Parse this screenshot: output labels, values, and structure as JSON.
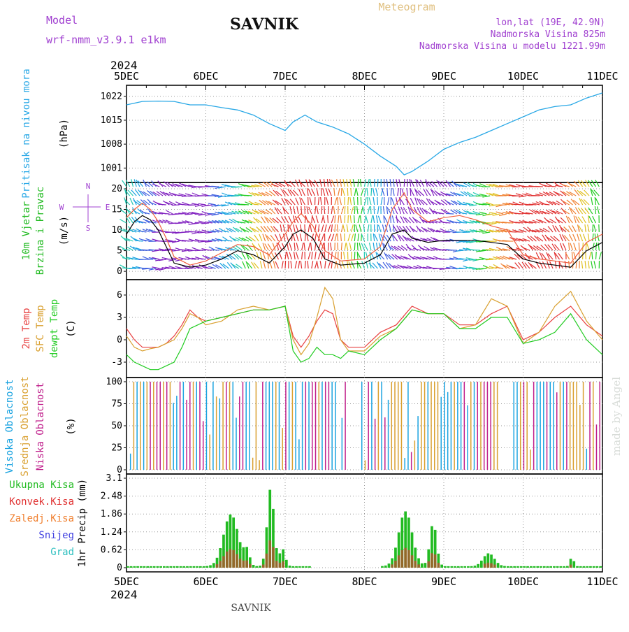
{
  "header": {
    "model_label": "Model",
    "model_name": "wrf-nmm_v3.9.1 e1km",
    "title": "SAVNIK",
    "subtitle": "Meteogram",
    "location": "lon,lat (19E, 42.9N)",
    "elevation": "Nadmorska Visina 825m",
    "model_elevation": "Nadmorska Visina u modelu 1221.99m",
    "year": "2024",
    "footer_title": "SAVNIK",
    "watermark": "made by Angel"
  },
  "colors": {
    "pressure": "#29a8e6",
    "wind_speed": "#000000",
    "wind_gust": "#f06040",
    "t2m": "#e84040",
    "tsfc": "#d9a030",
    "dewpoint": "#22cc22",
    "cloud_high": "#1aa3e0",
    "cloud_mid": "#d9a030",
    "cloud_low": "#c0208c",
    "precip_total": "#22bb22",
    "precip_conv": "#e03030",
    "precip_frz": "#f08030",
    "snow": "#4040e0",
    "hail": "#30c0c0",
    "label_pressure": "#29a8e6",
    "label_wind": "#22bb22",
    "label_model": "#a040d0"
  },
  "chart_data": [
    {
      "type": "line",
      "panel": "pressure",
      "ylabel_lines": [
        "Pritisak na nivou mora",
        "(hPa)"
      ],
      "ylim": [
        998,
        1024
      ],
      "yticks": [
        1001,
        1008,
        1015,
        1022
      ],
      "x_days": [
        "5DEC",
        "6DEC",
        "7DEC",
        "8DEC",
        "9DEC",
        "10DEC",
        "11DEC"
      ],
      "x": [
        0,
        0.2,
        0.4,
        0.6,
        0.8,
        1.0,
        1.2,
        1.4,
        1.6,
        1.8,
        2.0,
        2.1,
        2.25,
        2.4,
        2.6,
        2.8,
        3.0,
        3.2,
        3.4,
        3.5,
        3.6,
        3.8,
        4.0,
        4.2,
        4.4,
        4.6,
        4.8,
        5.0,
        5.2,
        5.4,
        5.6,
        5.8,
        6.0
      ],
      "values": [
        1019.5,
        1020.5,
        1020.6,
        1020.5,
        1019.5,
        1019.5,
        1018.7,
        1018.0,
        1016.5,
        1014.0,
        1012.0,
        1014.5,
        1016.5,
        1014.5,
        1013.0,
        1011.0,
        1008.0,
        1004.5,
        1001.5,
        999.0,
        1000.0,
        1003.0,
        1006.5,
        1008.5,
        1010.0,
        1012.0,
        1014.0,
        1016.0,
        1018.0,
        1019.0,
        1019.5,
        1021.5,
        1023.0
      ]
    },
    {
      "type": "line",
      "panel": "wind",
      "ylabel_lines": [
        "10m Vjetar",
        "Brzina i Pravac",
        "(m/s)"
      ],
      "compass_labels": [
        "N",
        "W",
        "E",
        "S"
      ],
      "ylim": [
        -1,
        20.5
      ],
      "yticks": [
        0,
        5,
        10,
        15,
        20
      ],
      "series": [
        {
          "name": "speed",
          "x": [
            0,
            0.1,
            0.2,
            0.3,
            0.4,
            0.5,
            0.6,
            0.8,
            1.0,
            1.2,
            1.4,
            1.6,
            1.8,
            2.0,
            2.1,
            2.2,
            2.35,
            2.5,
            2.7,
            3.0,
            3.2,
            3.35,
            3.5,
            3.6,
            3.8,
            4.0,
            4.2,
            4.4,
            4.6,
            4.8,
            5.0,
            5.2,
            5.4,
            5.6,
            5.8,
            6.0
          ],
          "values": [
            9,
            12,
            13.5,
            12.5,
            10,
            6,
            2,
            1,
            1.5,
            3,
            5,
            4,
            2,
            6,
            9,
            10,
            8,
            3,
            1.5,
            2,
            4,
            9,
            10,
            8,
            7,
            7.5,
            7.5,
            7.5,
            7,
            6.5,
            3,
            2,
            1.5,
            1,
            5,
            7
          ]
        },
        {
          "name": "gust",
          "x": [
            0,
            0.1,
            0.2,
            0.3,
            0.4,
            0.5,
            0.6,
            0.8,
            1.0,
            1.2,
            1.4,
            1.6,
            1.8,
            2.0,
            2.1,
            2.2,
            2.35,
            2.5,
            2.7,
            3.0,
            3.2,
            3.35,
            3.5,
            3.6,
            3.8,
            4.0,
            4.2,
            4.4,
            4.6,
            4.8,
            5.0,
            5.2,
            5.4,
            5.6,
            5.8,
            6.0
          ],
          "values": [
            13,
            15,
            16.5,
            15,
            12,
            8,
            3.5,
            1.5,
            2.5,
            4.5,
            6.5,
            6,
            4,
            9,
            12,
            14,
            11,
            5,
            2.5,
            3,
            6,
            15,
            19,
            15,
            12,
            13,
            13.5,
            12.5,
            11,
            10,
            4,
            3,
            2.5,
            2,
            7,
            9
          ]
        }
      ],
      "barb_colors": [
        "#e03030",
        "#f08030",
        "#e0c020",
        "#22cc22",
        "#20c8b0",
        "#1aa3e0",
        "#4060e0",
        "#8020c0"
      ]
    },
    {
      "type": "line",
      "panel": "temperature",
      "ylabel_lines": [
        "2m Temp",
        "SFC Temp",
        "dewpt Temp",
        "(C)"
      ],
      "ylim": [
        -4.5,
        7.5
      ],
      "yticks": [
        -3,
        0,
        3,
        6
      ],
      "series": [
        {
          "name": "2m Temp",
          "x": [
            0,
            0.1,
            0.2,
            0.3,
            0.4,
            0.5,
            0.6,
            0.7,
            0.8,
            0.9,
            1.0,
            1.2,
            1.4,
            1.6,
            1.8,
            2.0,
            2.1,
            2.2,
            2.3,
            2.4,
            2.5,
            2.6,
            2.7,
            2.8,
            3.0,
            3.2,
            3.4,
            3.6,
            3.8,
            4.0,
            4.2,
            4.4,
            4.6,
            4.8,
            5.0,
            5.2,
            5.4,
            5.6,
            5.8,
            6.0
          ],
          "values": [
            1.5,
            0,
            -1,
            -1,
            -1,
            -0.5,
            0.5,
            2,
            4,
            3,
            2.5,
            3,
            3.5,
            4,
            4,
            4.5,
            0.5,
            -1,
            0.5,
            2.5,
            4,
            3.5,
            0,
            -1,
            -1,
            1,
            2,
            4.5,
            3.5,
            3.5,
            2,
            2,
            3.5,
            4.5,
            0,
            1,
            3,
            4.5,
            2,
            0.5
          ]
        },
        {
          "name": "SFC Temp",
          "x": [
            0,
            0.1,
            0.2,
            0.3,
            0.4,
            0.5,
            0.6,
            0.7,
            0.8,
            0.9,
            1.0,
            1.2,
            1.4,
            1.6,
            1.8,
            2.0,
            2.1,
            2.2,
            2.3,
            2.4,
            2.5,
            2.6,
            2.7,
            2.8,
            3.0,
            3.2,
            3.4,
            3.6,
            3.8,
            4.0,
            4.2,
            4.4,
            4.6,
            4.8,
            5.0,
            5.2,
            5.4,
            5.6,
            5.8,
            6.0
          ],
          "values": [
            0.5,
            -1,
            -1.5,
            -1.2,
            -1,
            -0.5,
            0,
            1.5,
            3.5,
            3,
            2,
            2.5,
            4,
            4.5,
            4,
            4.5,
            0,
            -2,
            -0.5,
            3,
            7,
            5.5,
            0,
            -1.5,
            -1.5,
            0.5,
            1.5,
            4,
            3.5,
            3.5,
            1.5,
            2,
            5.5,
            4.5,
            -0.5,
            1,
            4.5,
            6.5,
            2.5,
            0
          ]
        },
        {
          "name": "dewpt Temp",
          "x": [
            0,
            0.1,
            0.2,
            0.3,
            0.4,
            0.5,
            0.6,
            0.7,
            0.8,
            0.9,
            1.0,
            1.2,
            1.4,
            1.6,
            1.8,
            2.0,
            2.1,
            2.2,
            2.3,
            2.4,
            2.5,
            2.6,
            2.7,
            2.8,
            3.0,
            3.2,
            3.4,
            3.6,
            3.8,
            4.0,
            4.2,
            4.4,
            4.6,
            4.8,
            5.0,
            5.2,
            5.4,
            5.6,
            5.8,
            6.0
          ],
          "values": [
            -2,
            -3,
            -3.5,
            -4,
            -4,
            -3.5,
            -3,
            -1,
            1.5,
            2,
            2.5,
            3,
            3.5,
            4,
            4,
            4.5,
            -1.5,
            -3,
            -2.5,
            -1,
            -2,
            -2,
            -2.5,
            -1.5,
            -2,
            0,
            1.5,
            4,
            3.5,
            3.5,
            1.5,
            1.5,
            3,
            3,
            -0.5,
            0,
            1,
            3.5,
            0,
            -2
          ]
        }
      ]
    },
    {
      "type": "bar",
      "panel": "clouds",
      "ylabel_lines": [
        "Visoka Oblacnost",
        "Srednja Oblacnost",
        "Niska Oblacnost",
        "(%)"
      ],
      "ylim": [
        0,
        100
      ],
      "yticks": [
        0,
        25,
        50,
        75,
        100
      ]
    },
    {
      "type": "bar",
      "panel": "precipitation",
      "ylabel_lines": [
        "1hr Precip (mm)"
      ],
      "legend": [
        "Ukupna Kisa",
        "Konvek.Kisa",
        "Zaledj.Kisa",
        "Snijeg",
        "Grad"
      ],
      "ylim": [
        0,
        3.1
      ],
      "yticks": [
        0,
        0.62,
        1.24,
        1.86,
        2.48,
        3.1
      ],
      "ytick_labels": [
        "0",
        "0.62",
        "1.24",
        "1.86",
        "2.48",
        "3.1"
      ],
      "peaks": [
        {
          "center": 1.3,
          "width": 0.13,
          "height": 1.8
        },
        {
          "center": 1.5,
          "width": 0.05,
          "height": 0.5
        },
        {
          "center": 1.8,
          "width": 0.06,
          "height": 2.7
        },
        {
          "center": 1.95,
          "width": 0.05,
          "height": 0.6
        },
        {
          "center": 3.5,
          "width": 0.12,
          "height": 1.9
        },
        {
          "center": 3.85,
          "width": 0.06,
          "height": 1.5
        },
        {
          "center": 4.55,
          "width": 0.1,
          "height": 0.45
        },
        {
          "center": 5.6,
          "width": 0.03,
          "height": 0.35
        }
      ]
    }
  ]
}
